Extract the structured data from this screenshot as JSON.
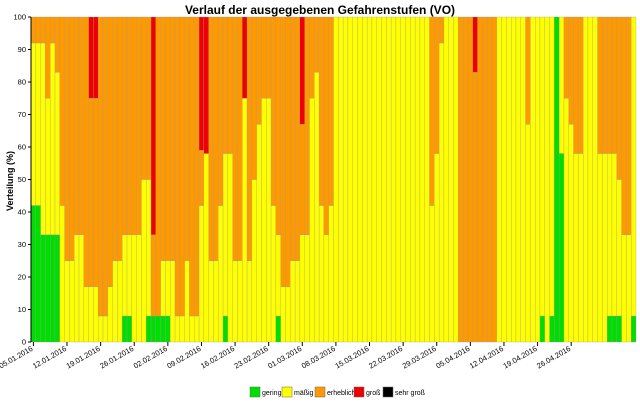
{
  "chart_data": {
    "type": "bar",
    "stacked": true,
    "title": "Verlauf der ausgegebenen Gefahrenstufen (VO)",
    "xlabel": "",
    "ylabel": "Verteilung (%)",
    "ylim": [
      0,
      100
    ],
    "yticks": [
      0,
      10,
      20,
      30,
      40,
      50,
      60,
      70,
      80,
      90,
      100
    ],
    "grid": false,
    "legend_position": "bottom",
    "x_start": "05.01.2016",
    "x_end": "03.05.2016",
    "x_tick_labels": [
      "05.01.2016",
      "12.01.2016",
      "19.01.2016",
      "26.01.2016",
      "02.02.2016",
      "09.02.2016",
      "16.02.2016",
      "23.02.2016",
      "01.03.2016",
      "08.03.2016",
      "15.03.2016",
      "22.03.2016",
      "29.03.2016",
      "05.04.2016",
      "12.04.2016",
      "19.04.2016",
      "26.04.2016"
    ],
    "series": [
      {
        "name": "gering",
        "color": "#00dd00"
      },
      {
        "name": "mäßig",
        "color": "#ffff00"
      },
      {
        "name": "erheblich",
        "color": "#ff9900"
      },
      {
        "name": "groß",
        "color": "#ee0000"
      },
      {
        "name": "sehr groß",
        "color": "#000000"
      }
    ],
    "values": [
      [
        42,
        50,
        8,
        0
      ],
      [
        42,
        50,
        8,
        0
      ],
      [
        33,
        59,
        8,
        0
      ],
      [
        33,
        42,
        25,
        0
      ],
      [
        33,
        59,
        8,
        0
      ],
      [
        33,
        50,
        17,
        0
      ],
      [
        0,
        42,
        58,
        0
      ],
      [
        0,
        25,
        75,
        0
      ],
      [
        0,
        25,
        75,
        0
      ],
      [
        0,
        33,
        67,
        0
      ],
      [
        0,
        33,
        67,
        0
      ],
      [
        0,
        17,
        83,
        0
      ],
      [
        0,
        17,
        58,
        25
      ],
      [
        0,
        17,
        58,
        25
      ],
      [
        0,
        8,
        92,
        0
      ],
      [
        0,
        8,
        92,
        0
      ],
      [
        0,
        17,
        83,
        0
      ],
      [
        0,
        25,
        75,
        0
      ],
      [
        0,
        25,
        75,
        0
      ],
      [
        8,
        25,
        67,
        0
      ],
      [
        8,
        25,
        67,
        0
      ],
      [
        0,
        33,
        67,
        0
      ],
      [
        0,
        33,
        67,
        0
      ],
      [
        0,
        50,
        50,
        0
      ],
      [
        8,
        42,
        50,
        0
      ],
      [
        8,
        0,
        25,
        67
      ],
      [
        8,
        0,
        92,
        0
      ],
      [
        8,
        17,
        75,
        0
      ],
      [
        8,
        17,
        75,
        0
      ],
      [
        0,
        25,
        75,
        0
      ],
      [
        0,
        8,
        92,
        0
      ],
      [
        0,
        8,
        92,
        0
      ],
      [
        0,
        25,
        75,
        0
      ],
      [
        0,
        8,
        92,
        0
      ],
      [
        0,
        8,
        92,
        0
      ],
      [
        0,
        42,
        17,
        41
      ],
      [
        0,
        58,
        0,
        42
      ],
      [
        0,
        25,
        75,
        0
      ],
      [
        0,
        25,
        75,
        0
      ],
      [
        0,
        42,
        58,
        0
      ],
      [
        8,
        50,
        42,
        0
      ],
      [
        0,
        58,
        42,
        0
      ],
      [
        0,
        25,
        75,
        0
      ],
      [
        0,
        25,
        75,
        0
      ],
      [
        0,
        75,
        0,
        25
      ],
      [
        0,
        25,
        75,
        0
      ],
      [
        0,
        50,
        50,
        0
      ],
      [
        0,
        67,
        33,
        0
      ],
      [
        0,
        75,
        25,
        0
      ],
      [
        0,
        75,
        25,
        0
      ],
      [
        0,
        42,
        58,
        0
      ],
      [
        8,
        25,
        67,
        0
      ],
      [
        0,
        17,
        83,
        0
      ],
      [
        0,
        17,
        83,
        0
      ],
      [
        0,
        25,
        75,
        0
      ],
      [
        0,
        25,
        75,
        0
      ],
      [
        0,
        33,
        34,
        33
      ],
      [
        0,
        33,
        67,
        0
      ],
      [
        0,
        75,
        25,
        0
      ],
      [
        0,
        83,
        17,
        0
      ],
      [
        0,
        42,
        58,
        0
      ],
      [
        0,
        33,
        67,
        0
      ],
      [
        0,
        42,
        58,
        0
      ],
      [
        0,
        100,
        0,
        0
      ],
      [
        0,
        100,
        0,
        0
      ],
      [
        0,
        100,
        0,
        0
      ],
      [
        0,
        100,
        0,
        0
      ],
      [
        0,
        100,
        0,
        0
      ],
      [
        0,
        100,
        0,
        0
      ],
      [
        0,
        100,
        0,
        0
      ],
      [
        0,
        100,
        0,
        0
      ],
      [
        0,
        100,
        0,
        0
      ],
      [
        0,
        100,
        0,
        0
      ],
      [
        0,
        100,
        0,
        0
      ],
      [
        0,
        100,
        0,
        0
      ],
      [
        0,
        100,
        0,
        0
      ],
      [
        0,
        100,
        0,
        0
      ],
      [
        0,
        100,
        0,
        0
      ],
      [
        0,
        100,
        0,
        0
      ],
      [
        0,
        100,
        0,
        0
      ],
      [
        0,
        100,
        0,
        0
      ],
      [
        0,
        100,
        0,
        0
      ],
      [
        0,
        100,
        0,
        0
      ],
      [
        0,
        42,
        58,
        0
      ],
      [
        0,
        58,
        42,
        0
      ],
      [
        0,
        92,
        8,
        0
      ],
      [
        0,
        100,
        0,
        0
      ],
      [
        0,
        100,
        0,
        0
      ],
      [
        0,
        100,
        0,
        0
      ],
      [
        0,
        0,
        100,
        0
      ],
      [
        0,
        0,
        100,
        0
      ],
      [
        0,
        0,
        100,
        0
      ],
      [
        0,
        0,
        83,
        17
      ],
      [
        0,
        0,
        100,
        0
      ],
      [
        0,
        0,
        100,
        0
      ],
      [
        0,
        0,
        100,
        0
      ],
      [
        0,
        0,
        100,
        0
      ],
      [
        0,
        100,
        0,
        0
      ],
      [
        0,
        100,
        0,
        0
      ],
      [
        0,
        100,
        0,
        0
      ],
      [
        0,
        100,
        0,
        0
      ],
      [
        0,
        100,
        0,
        0
      ],
      [
        0,
        100,
        0,
        0
      ],
      [
        0,
        67,
        33,
        0
      ],
      [
        0,
        100,
        0,
        0
      ],
      [
        0,
        100,
        0,
        0
      ],
      [
        8,
        92,
        0,
        0
      ],
      [
        0,
        100,
        0,
        0
      ],
      [
        8,
        92,
        0,
        0
      ],
      [
        100,
        0,
        0,
        0
      ],
      [
        58,
        42,
        0,
        0
      ],
      [
        0,
        75,
        25,
        0
      ],
      [
        0,
        67,
        33,
        0
      ],
      [
        0,
        58,
        42,
        0
      ],
      [
        0,
        58,
        42,
        0
      ],
      [
        0,
        100,
        0,
        0
      ],
      [
        0,
        100,
        0,
        0
      ],
      [
        0,
        100,
        0,
        0
      ],
      [
        0,
        58,
        42,
        0
      ],
      [
        0,
        58,
        42,
        0
      ],
      [
        8,
        50,
        42,
        0
      ],
      [
        8,
        50,
        42,
        0
      ],
      [
        8,
        42,
        50,
        0
      ],
      [
        0,
        33,
        67,
        0
      ],
      [
        0,
        33,
        67,
        0
      ],
      [
        8,
        92,
        0,
        0
      ]
    ]
  }
}
